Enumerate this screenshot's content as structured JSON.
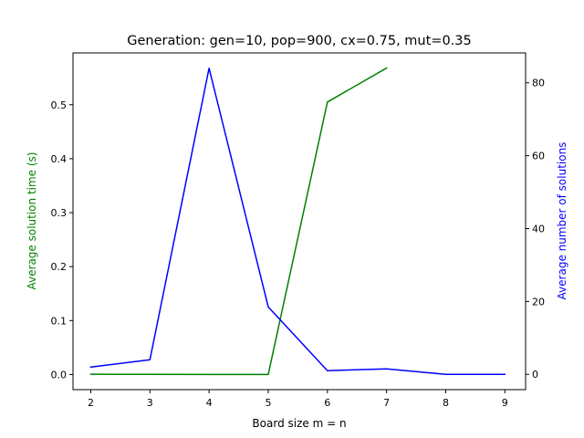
{
  "chart_data": {
    "type": "line",
    "title": "Generation: gen=10, pop=900, cx=0.75, mut=0.35",
    "xlabel": "Board size m = n",
    "ylabel": "Average solution time (s)",
    "y2label": "Average number of solutions",
    "xlim": [
      1.7,
      9.35
    ],
    "ylim": [
      -0.028,
      0.596
    ],
    "y2lim": [
      -4.2,
      88.2
    ],
    "x_ticks": [
      "2",
      "3",
      "4",
      "5",
      "6",
      "7",
      "8",
      "9"
    ],
    "y_ticks": [
      "0.0",
      "0.1",
      "0.2",
      "0.3",
      "0.4",
      "0.5"
    ],
    "y2_ticks": [
      "0",
      "20",
      "40",
      "60",
      "80"
    ],
    "grid": false,
    "series": [
      {
        "axis": "left",
        "color": "#008000",
        "x": [
          2,
          3,
          4,
          5,
          6,
          7
        ],
        "values": [
          0.0005,
          0.0003,
          0.0001,
          0.0002,
          0.505,
          0.568
        ]
      },
      {
        "axis": "right",
        "color": "#0000ff",
        "x": [
          2,
          3,
          4,
          5,
          6,
          7,
          8,
          9
        ],
        "values": [
          2,
          4,
          84,
          18.5,
          1,
          1.5,
          0,
          0
        ]
      }
    ]
  }
}
